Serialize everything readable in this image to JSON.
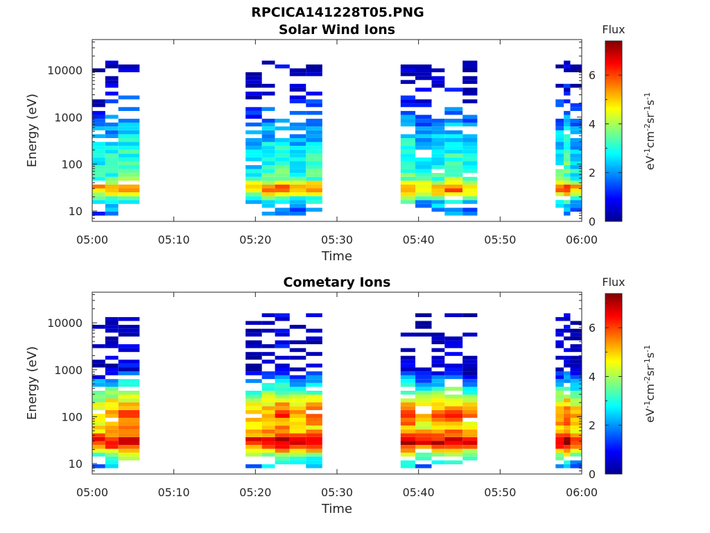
{
  "figure": {
    "title": "RPCICA141228T05.PNG"
  },
  "colormap": "jet",
  "chart_data": [
    {
      "type": "heatmap",
      "title": "Solar Wind Ions",
      "xlabel": "Time",
      "ylabel": "Energy (eV)",
      "x_ticks": [
        "05:00",
        "05:10",
        "05:20",
        "05:30",
        "05:40",
        "05:50",
        "06:00"
      ],
      "y_ticks": [
        "10",
        "100",
        "1000",
        "10000"
      ],
      "y_scale": "log",
      "ylim": [
        6,
        45000
      ],
      "x_range_minutes": [
        0,
        60
      ],
      "colorbar": {
        "title": "Flux",
        "label": "eV-1cm-2sr-1s-1",
        "ticks": [
          "0",
          "2",
          "4",
          "6"
        ],
        "range": [
          0,
          7.4
        ]
      },
      "data_intervals_minutes": [
        [
          0,
          1.6
        ],
        [
          1.6,
          3.2
        ],
        [
          3.2,
          5.8
        ],
        [
          18.8,
          20.8
        ],
        [
          20.8,
          22.4
        ],
        [
          22.4,
          24.2
        ],
        [
          24.2,
          26.2
        ],
        [
          26.2,
          28.2
        ],
        [
          37.8,
          39.6
        ],
        [
          39.6,
          41.6
        ],
        [
          41.6,
          43.2
        ],
        [
          43.2,
          45.4
        ],
        [
          45.4,
          47.2
        ],
        [
          56.8,
          57.8
        ],
        [
          57.8,
          58.6
        ],
        [
          58.6,
          60
        ]
      ],
      "flux_profile": [
        [
          8,
          1.8
        ],
        [
          14,
          2.2
        ],
        [
          20,
          3.6
        ],
        [
          25,
          5.0
        ],
        [
          30,
          5.6
        ],
        [
          36,
          5.2
        ],
        [
          45,
          3.5
        ],
        [
          60,
          3.2
        ],
        [
          100,
          3.0
        ],
        [
          200,
          2.7
        ],
        [
          400,
          2.3
        ],
        [
          800,
          1.9
        ],
        [
          1500,
          1.3
        ],
        [
          3000,
          0.8
        ],
        [
          6000,
          0.4
        ],
        [
          12000,
          0.2
        ]
      ]
    },
    {
      "type": "heatmap",
      "title": "Cometary Ions",
      "xlabel": "Time",
      "ylabel": "Energy (eV)",
      "x_ticks": [
        "05:00",
        "05:10",
        "05:20",
        "05:30",
        "05:40",
        "05:50",
        "06:00"
      ],
      "y_ticks": [
        "10",
        "100",
        "1000",
        "10000"
      ],
      "y_scale": "log",
      "ylim": [
        6,
        45000
      ],
      "x_range_minutes": [
        0,
        60
      ],
      "colorbar": {
        "title": "Flux",
        "label": "eV-1cm-2sr-1s-1",
        "ticks": [
          "0",
          "2",
          "4",
          "6"
        ],
        "range": [
          0,
          7.4
        ]
      },
      "data_intervals_minutes": [
        [
          0,
          1.6
        ],
        [
          1.6,
          3.2
        ],
        [
          3.2,
          5.8
        ],
        [
          18.8,
          20.8
        ],
        [
          20.8,
          22.4
        ],
        [
          22.4,
          24.2
        ],
        [
          24.2,
          26.2
        ],
        [
          26.2,
          28.2
        ],
        [
          37.8,
          39.6
        ],
        [
          39.6,
          41.6
        ],
        [
          41.6,
          43.2
        ],
        [
          43.2,
          45.4
        ],
        [
          45.4,
          47.2
        ],
        [
          56.8,
          57.8
        ],
        [
          57.8,
          58.6
        ],
        [
          58.6,
          60
        ]
      ],
      "flux_profile": [
        [
          8,
          2.0
        ],
        [
          14,
          3.4
        ],
        [
          20,
          5.2
        ],
        [
          25,
          6.3
        ],
        [
          30,
          6.8
        ],
        [
          36,
          6.3
        ],
        [
          45,
          5.2
        ],
        [
          60,
          5.0
        ],
        [
          100,
          5.6
        ],
        [
          150,
          5.2
        ],
        [
          250,
          4.2
        ],
        [
          400,
          3.0
        ],
        [
          600,
          2.0
        ],
        [
          1000,
          0.6
        ],
        [
          3000,
          0.4
        ],
        [
          4000,
          0.2
        ]
      ]
    }
  ]
}
